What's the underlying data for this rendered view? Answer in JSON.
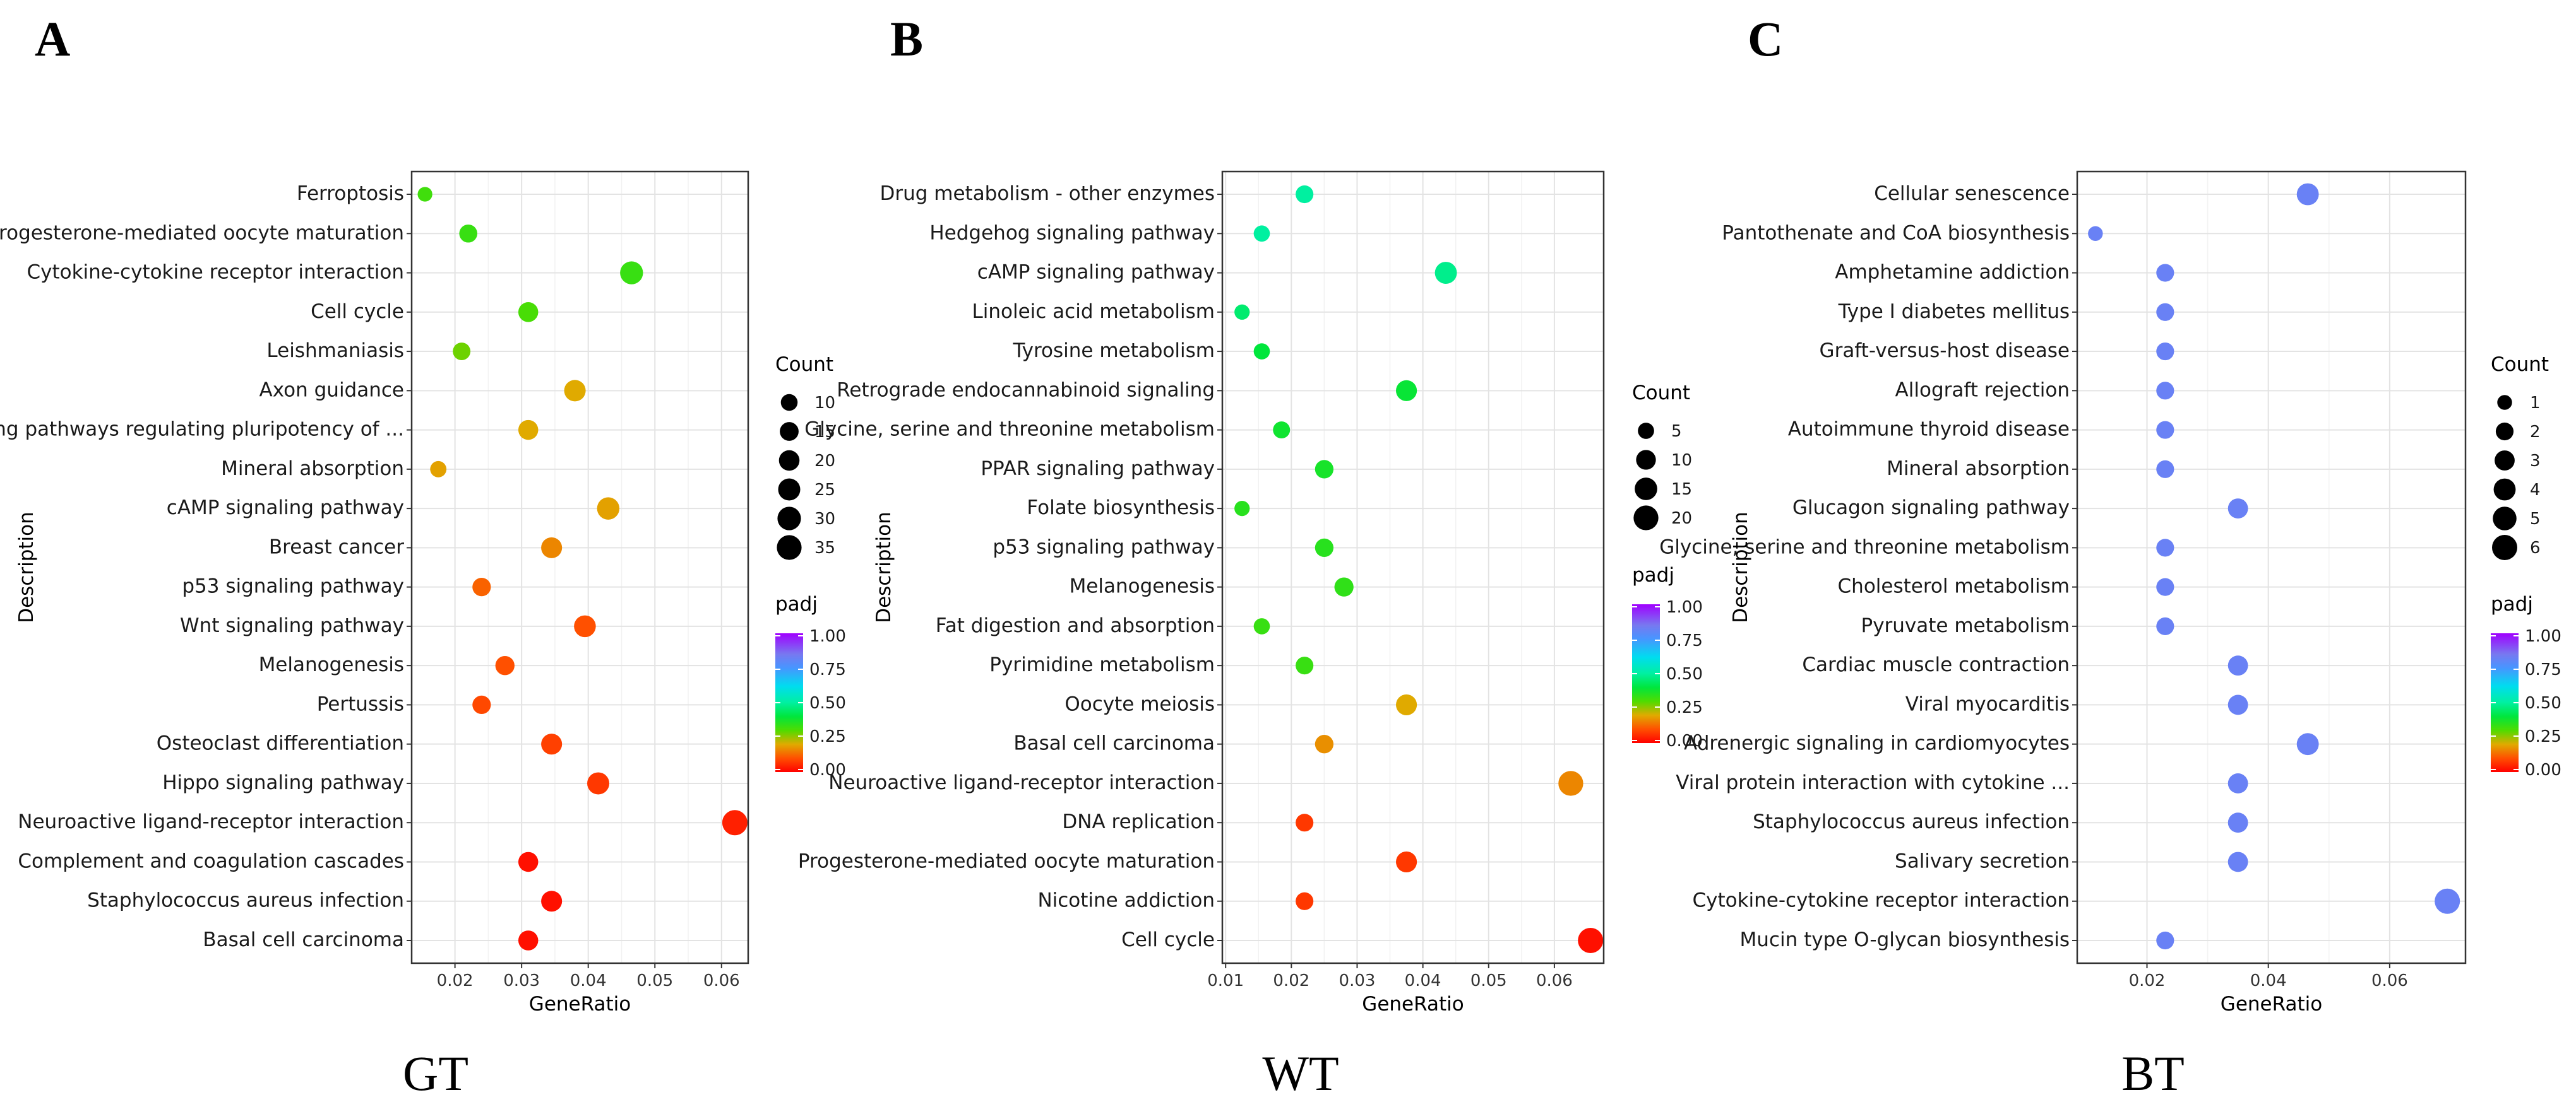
{
  "chart_data": [
    {
      "panel": "A",
      "group": "GT",
      "type": "scatter",
      "xlabel": "GeneRatio",
      "ylabel": "Description",
      "xticks": [
        0.02,
        0.03,
        0.04,
        0.05,
        0.06
      ],
      "xtick_labels": [
        "0.02",
        "0.03",
        "0.04",
        "0.05",
        "0.06"
      ],
      "xlim": [
        0.0135,
        0.064
      ],
      "size_legend": {
        "title": "Count",
        "values": [
          10,
          15,
          20,
          25,
          30,
          35
        ]
      },
      "color_legend": {
        "title": "padj",
        "ticks": [
          "1.00",
          "0.75",
          "0.50",
          "0.25",
          "0.00"
        ]
      },
      "points": [
        {
          "label": "Ferroptosis",
          "x": 0.0155,
          "count": 6,
          "padj": 0.32
        },
        {
          "label": "Progesterone-mediated oocyte maturation",
          "x": 0.022,
          "count": 13,
          "padj": 0.33
        },
        {
          "label": "Cytokine-cytokine receptor interaction",
          "x": 0.0465,
          "count": 28,
          "padj": 0.33
        },
        {
          "label": "Cell cycle",
          "x": 0.031,
          "count": 18,
          "padj": 0.31
        },
        {
          "label": "Leishmaniasis",
          "x": 0.021,
          "count": 12,
          "padj": 0.28
        },
        {
          "label": "Axon guidance",
          "x": 0.038,
          "count": 23,
          "padj": 0.2
        },
        {
          "label": "Signaling pathways regulating pluripotency of ...",
          "x": 0.031,
          "count": 18,
          "padj": 0.2
        },
        {
          "label": "Mineral absorption",
          "x": 0.0175,
          "count": 9,
          "padj": 0.19
        },
        {
          "label": "cAMP signaling pathway",
          "x": 0.043,
          "count": 26,
          "padj": 0.19
        },
        {
          "label": "Breast cancer",
          "x": 0.0345,
          "count": 21,
          "padj": 0.16
        },
        {
          "label": "p53 signaling pathway",
          "x": 0.024,
          "count": 14,
          "padj": 0.12
        },
        {
          "label": "Wnt signaling pathway",
          "x": 0.0395,
          "count": 24,
          "padj": 0.1
        },
        {
          "label": "Melanogenesis",
          "x": 0.0275,
          "count": 16,
          "padj": 0.1
        },
        {
          "label": "Pertussis",
          "x": 0.024,
          "count": 14,
          "padj": 0.09
        },
        {
          "label": "Osteoclast differentiation",
          "x": 0.0345,
          "count": 21,
          "padj": 0.08
        },
        {
          "label": "Hippo signaling pathway",
          "x": 0.0415,
          "count": 25,
          "padj": 0.07
        },
        {
          "label": "Neuroactive ligand-receptor interaction",
          "x": 0.062,
          "count": 37,
          "padj": 0.04
        },
        {
          "label": "Complement and coagulation cascades",
          "x": 0.031,
          "count": 18,
          "padj": 0.02
        },
        {
          "label": "Staphylococcus aureus infection",
          "x": 0.0345,
          "count": 21,
          "padj": 0.02
        },
        {
          "label": "Basal cell carcinoma",
          "x": 0.031,
          "count": 18,
          "padj": 0.02
        }
      ]
    },
    {
      "panel": "B",
      "group": "WT",
      "type": "scatter",
      "xlabel": "GeneRatio",
      "ylabel": "Description",
      "xticks": [
        0.01,
        0.02,
        0.03,
        0.04,
        0.05,
        0.06
      ],
      "xtick_labels": [
        "0.01",
        "0.02",
        "0.03",
        "0.04",
        "0.05",
        "0.06"
      ],
      "xlim": [
        0.0095,
        0.0675
      ],
      "size_legend": {
        "title": "Count",
        "values": [
          5,
          10,
          15,
          20
        ]
      },
      "color_legend": {
        "title": "padj",
        "ticks": [
          "1.00",
          "0.75",
          "0.50",
          "0.25",
          "0.00"
        ]
      },
      "points": [
        {
          "label": "Drug metabolism - other enzymes",
          "x": 0.022,
          "count": 7,
          "padj": 0.5
        },
        {
          "label": "Hedgehog signaling pathway",
          "x": 0.0155,
          "count": 5,
          "padj": 0.5
        },
        {
          "label": "cAMP signaling pathway",
          "x": 0.0435,
          "count": 14,
          "padj": 0.48
        },
        {
          "label": "Linoleic acid metabolism",
          "x": 0.0125,
          "count": 4,
          "padj": 0.45
        },
        {
          "label": "Tyrosine metabolism",
          "x": 0.0155,
          "count": 5,
          "padj": 0.4
        },
        {
          "label": "Retrograde endocannabinoid signaling",
          "x": 0.0375,
          "count": 12,
          "padj": 0.39
        },
        {
          "label": "Glycine, serine and threonine metabolism",
          "x": 0.0185,
          "count": 6,
          "padj": 0.38
        },
        {
          "label": "PPAR signaling pathway",
          "x": 0.025,
          "count": 8,
          "padj": 0.37
        },
        {
          "label": "Folate biosynthesis",
          "x": 0.0125,
          "count": 4,
          "padj": 0.35
        },
        {
          "label": "p53 signaling pathway",
          "x": 0.025,
          "count": 8,
          "padj": 0.35
        },
        {
          "label": "Melanogenesis",
          "x": 0.028,
          "count": 9,
          "padj": 0.34
        },
        {
          "label": "Fat digestion and absorption",
          "x": 0.0155,
          "count": 5,
          "padj": 0.33
        },
        {
          "label": "Pyrimidine metabolism",
          "x": 0.022,
          "count": 7,
          "padj": 0.33
        },
        {
          "label": "Oocyte meiosis",
          "x": 0.0375,
          "count": 12,
          "padj": 0.2
        },
        {
          "label": "Basal cell carcinoma",
          "x": 0.025,
          "count": 8,
          "padj": 0.17
        },
        {
          "label": "Neuroactive ligand-receptor interaction",
          "x": 0.0625,
          "count": 20,
          "padj": 0.16
        },
        {
          "label": "DNA replication",
          "x": 0.022,
          "count": 7,
          "padj": 0.07
        },
        {
          "label": "Progesterone-mediated oocyte maturation",
          "x": 0.0375,
          "count": 12,
          "padj": 0.07
        },
        {
          "label": "Nicotine addiction",
          "x": 0.022,
          "count": 7,
          "padj": 0.07
        },
        {
          "label": "Cell cycle",
          "x": 0.0655,
          "count": 21,
          "padj": 0.02
        }
      ]
    },
    {
      "panel": "C",
      "group": "BT",
      "type": "scatter",
      "xlabel": "GeneRatio",
      "ylabel": "Description",
      "xticks": [
        0.02,
        0.04,
        0.06
      ],
      "xtick_labels": [
        "0.02",
        "0.04",
        "0.06"
      ],
      "xlim": [
        0.0085,
        0.0725
      ],
      "size_legend": {
        "title": "Count",
        "values": [
          1,
          2,
          3,
          4,
          5,
          6
        ]
      },
      "color_legend": {
        "title": "padj",
        "ticks": [
          "1.00",
          "0.75",
          "0.50",
          "0.25",
          "0.00"
        ]
      },
      "points": [
        {
          "label": "Cellular senescence",
          "x": 0.0465,
          "count": 4,
          "padj": 0.82
        },
        {
          "label": "Pantothenate and CoA biosynthesis",
          "x": 0.0115,
          "count": 1,
          "padj": 0.82
        },
        {
          "label": "Amphetamine addiction",
          "x": 0.023,
          "count": 2,
          "padj": 0.82
        },
        {
          "label": "Type I diabetes mellitus",
          "x": 0.023,
          "count": 2,
          "padj": 0.82
        },
        {
          "label": "Graft-versus-host disease",
          "x": 0.023,
          "count": 2,
          "padj": 0.82
        },
        {
          "label": "Allograft rejection",
          "x": 0.023,
          "count": 2,
          "padj": 0.82
        },
        {
          "label": "Autoimmune thyroid disease",
          "x": 0.023,
          "count": 2,
          "padj": 0.82
        },
        {
          "label": "Mineral absorption",
          "x": 0.023,
          "count": 2,
          "padj": 0.82
        },
        {
          "label": "Glucagon signaling pathway",
          "x": 0.035,
          "count": 3,
          "padj": 0.82
        },
        {
          "label": "Glycine, serine and threonine metabolism",
          "x": 0.023,
          "count": 2,
          "padj": 0.82
        },
        {
          "label": "Cholesterol metabolism",
          "x": 0.023,
          "count": 2,
          "padj": 0.82
        },
        {
          "label": "Pyruvate metabolism",
          "x": 0.023,
          "count": 2,
          "padj": 0.82
        },
        {
          "label": "Cardiac muscle contraction",
          "x": 0.035,
          "count": 3,
          "padj": 0.82
        },
        {
          "label": "Viral myocarditis",
          "x": 0.035,
          "count": 3,
          "padj": 0.82
        },
        {
          "label": "Adrenergic signaling in cardiomyocytes",
          "x": 0.0465,
          "count": 4,
          "padj": 0.82
        },
        {
          "label": "Viral protein interaction with cytokine ...",
          "x": 0.035,
          "count": 3,
          "padj": 0.82
        },
        {
          "label": "Staphylococcus aureus infection",
          "x": 0.035,
          "count": 3,
          "padj": 0.82
        },
        {
          "label": "Salivary secretion",
          "x": 0.035,
          "count": 3,
          "padj": 0.82
        },
        {
          "label": "Cytokine-cytokine receptor interaction",
          "x": 0.0695,
          "count": 6,
          "padj": 0.82
        },
        {
          "label": "Mucin type O-glycan biosynthesis",
          "x": 0.023,
          "count": 2,
          "padj": 0.82
        }
      ]
    }
  ]
}
